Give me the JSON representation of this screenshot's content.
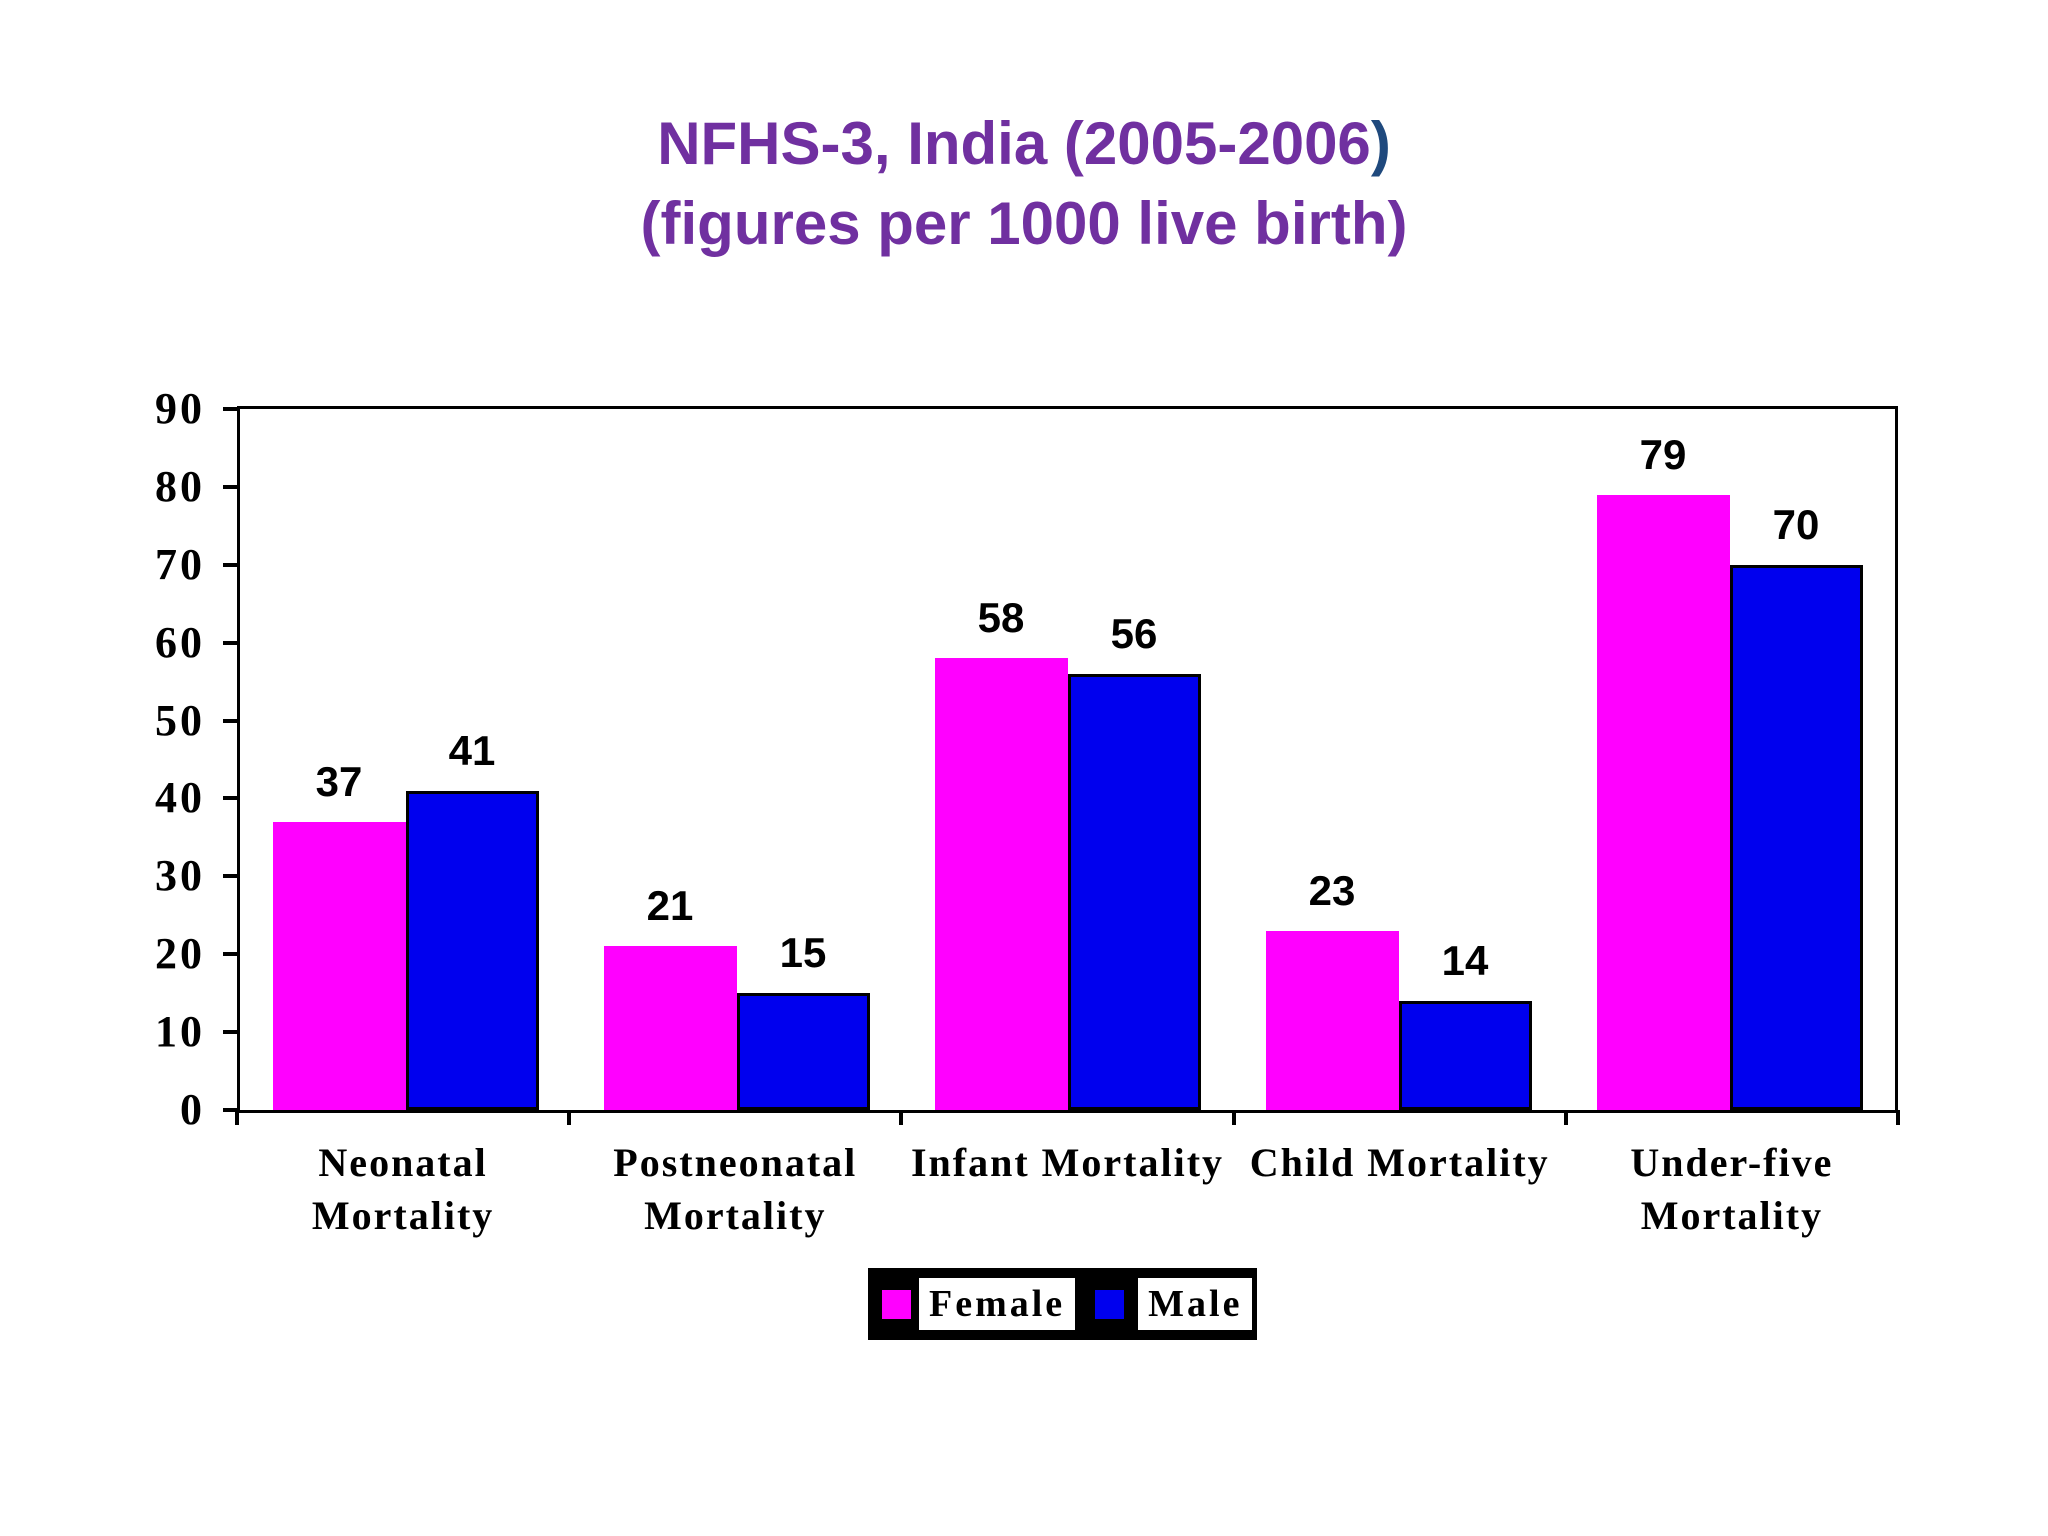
{
  "title": {
    "line1_main": "NFHS-3, India (2005-2006",
    "line1_paren": ")",
    "line2": "(figures per 1000 live birth)",
    "color": "#7030A0",
    "paren_color": "#1F497D"
  },
  "chart_data": {
    "type": "bar",
    "title": "NFHS-3, India (2005-2006) (figures per 1000 live birth)",
    "categories": [
      "Neonatal\nMortality",
      "Postneonatal\nMortality",
      "Infant Mortality",
      "Child Mortality",
      "Under-five\nMortality"
    ],
    "series": [
      {
        "name": "Female",
        "color": "#FF00FF",
        "values": [
          37,
          21,
          58,
          23,
          79
        ]
      },
      {
        "name": "Male",
        "color": "#0000EE",
        "values": [
          41,
          15,
          56,
          14,
          70
        ]
      }
    ],
    "value_labels": [
      [
        37,
        21,
        58,
        23,
        79
      ],
      [
        41,
        15,
        56,
        14,
        70
      ]
    ],
    "ylim": [
      0,
      90
    ],
    "yticks": [
      0,
      10,
      20,
      30,
      40,
      50,
      60,
      70,
      80,
      90
    ],
    "grid": false,
    "legend_position": "bottom",
    "bar_outline_male": "#000000",
    "text_color": "#000000",
    "plot_border_color": "#000000"
  }
}
